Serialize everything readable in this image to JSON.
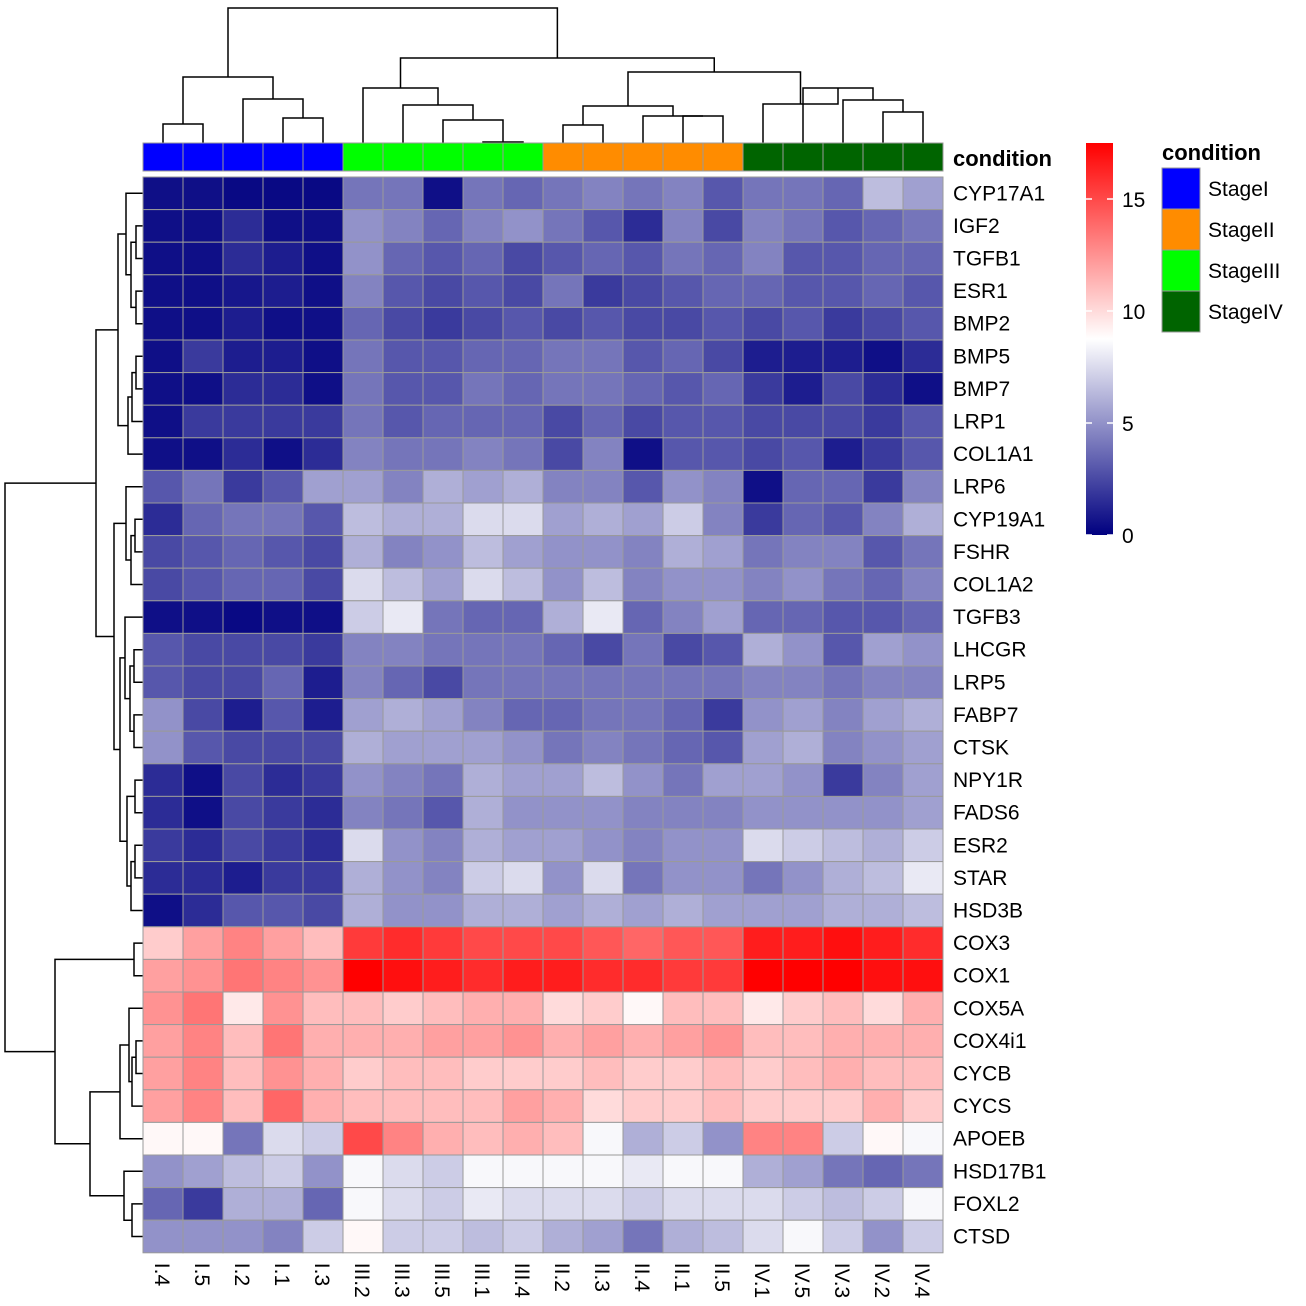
{
  "chart_data": {
    "type": "heatmap",
    "title": "",
    "columns": [
      "I.4",
      "I.5",
      "I.2",
      "I.1",
      "I.3",
      "III.2",
      "III.3",
      "III.5",
      "III.1",
      "III.4",
      "II.2",
      "II.3",
      "II.4",
      "II.1",
      "II.5",
      "IV.1",
      "IV.5",
      "IV.3",
      "IV.2",
      "IV.4"
    ],
    "column_conditions": [
      "StageI",
      "StageI",
      "StageI",
      "StageI",
      "StageI",
      "StageIII",
      "StageIII",
      "StageIII",
      "StageIII",
      "StageIII",
      "StageII",
      "StageII",
      "StageII",
      "StageII",
      "StageII",
      "StageIV",
      "StageIV",
      "StageIV",
      "StageIV",
      "StageIV"
    ],
    "rows": [
      "CYP17A1",
      "IGF2",
      "TGFB1",
      "ESR1",
      "BMP2",
      "BMP5",
      "BMP7",
      "LRP1",
      "COL1A1",
      "LRP6",
      "CYP19A1",
      "FSHR",
      "COL1A2",
      "TGFB3",
      "LHCGR",
      "LRP5",
      "FABP7",
      "CTSK",
      "NPY1R",
      "FADS6",
      "ESR2",
      "STAR",
      "HSD3B",
      "COX3",
      "COX1",
      "COX5A",
      "COX4i1",
      "CYCB",
      "CYCS",
      "APOEB",
      "HSD17B1",
      "FOXL2",
      "CTSD"
    ],
    "values": [
      [
        0.5,
        0.5,
        0.3,
        0.3,
        0.3,
        4.0,
        4.0,
        0.5,
        4.0,
        3.5,
        4.0,
        4.5,
        4.0,
        4.5,
        3.0,
        4.0,
        4.0,
        3.5,
        6.5,
        5.5
      ],
      [
        0.5,
        0.5,
        1.5,
        0.5,
        0.5,
        5.0,
        4.5,
        3.5,
        4.5,
        5.0,
        4.0,
        3.0,
        1.5,
        4.5,
        2.5,
        4.5,
        4.0,
        3.0,
        3.5,
        4.0
      ],
      [
        0.5,
        0.5,
        1.5,
        1.0,
        0.5,
        5.0,
        3.5,
        3.0,
        3.5,
        2.5,
        3.0,
        3.5,
        3.0,
        4.0,
        3.5,
        4.5,
        3.0,
        3.0,
        3.5,
        3.5
      ],
      [
        0.5,
        0.5,
        0.8,
        1.0,
        0.5,
        4.5,
        3.0,
        2.5,
        3.0,
        2.5,
        4.0,
        2.0,
        2.5,
        3.0,
        3.5,
        3.5,
        3.0,
        3.0,
        3.5,
        3.0
      ],
      [
        0.5,
        0.5,
        1.0,
        0.5,
        0.5,
        3.5,
        2.5,
        2.0,
        2.5,
        3.0,
        2.5,
        3.0,
        2.5,
        2.5,
        3.0,
        2.5,
        3.0,
        2.0,
        2.5,
        3.0
      ],
      [
        0.5,
        2.0,
        1.0,
        1.0,
        0.5,
        4.0,
        3.0,
        3.0,
        3.5,
        3.5,
        4.0,
        4.0,
        3.0,
        3.5,
        2.5,
        1.0,
        1.0,
        1.0,
        0.5,
        1.5
      ],
      [
        0.5,
        0.5,
        1.5,
        1.5,
        0.5,
        4.0,
        3.0,
        3.0,
        4.0,
        3.5,
        4.0,
        4.0,
        3.5,
        3.0,
        3.5,
        2.0,
        1.0,
        2.5,
        1.5,
        0.5
      ],
      [
        0.5,
        2.0,
        2.0,
        2.0,
        2.0,
        4.0,
        3.0,
        3.5,
        3.5,
        3.5,
        2.5,
        3.5,
        2.5,
        3.0,
        3.0,
        2.5,
        2.5,
        2.5,
        2.0,
        3.0
      ],
      [
        0.5,
        0.5,
        1.5,
        0.5,
        1.5,
        4.5,
        4.0,
        4.0,
        4.5,
        4.0,
        2.5,
        4.5,
        0.5,
        3.0,
        3.0,
        2.5,
        3.0,
        1.0,
        2.0,
        3.0
      ],
      [
        3.0,
        4.0,
        2.0,
        3.0,
        5.5,
        5.5,
        4.5,
        6.0,
        5.5,
        6.0,
        4.5,
        4.5,
        3.0,
        5.0,
        4.5,
        0.5,
        3.5,
        3.5,
        2.0,
        4.5
      ],
      [
        1.5,
        3.5,
        4.0,
        4.0,
        3.0,
        6.5,
        6.0,
        6.0,
        7.5,
        7.5,
        5.5,
        6.0,
        5.5,
        7.0,
        4.5,
        2.0,
        3.5,
        3.0,
        4.5,
        6.0
      ],
      [
        2.5,
        3.0,
        3.5,
        3.0,
        2.5,
        6.0,
        4.5,
        5.0,
        6.5,
        5.5,
        5.0,
        5.0,
        4.5,
        6.0,
        5.5,
        4.0,
        4.5,
        4.5,
        3.0,
        4.0
      ],
      [
        2.5,
        3.0,
        3.5,
        3.5,
        2.5,
        7.5,
        6.5,
        5.5,
        7.5,
        6.5,
        5.0,
        6.5,
        4.5,
        5.0,
        5.0,
        4.5,
        5.0,
        4.0,
        3.5,
        4.5
      ],
      [
        0.5,
        0.5,
        0.3,
        0.5,
        0.5,
        7.0,
        8.0,
        4.0,
        3.5,
        3.5,
        6.0,
        8.0,
        3.5,
        4.5,
        5.5,
        3.5,
        3.5,
        3.0,
        3.0,
        3.5
      ],
      [
        3.0,
        2.5,
        2.5,
        2.5,
        2.0,
        4.5,
        4.5,
        4.0,
        4.0,
        4.0,
        3.5,
        2.5,
        4.0,
        2.5,
        3.0,
        6.0,
        5.0,
        3.0,
        5.5,
        5.0
      ],
      [
        3.0,
        2.5,
        2.5,
        3.5,
        1.0,
        4.5,
        3.5,
        2.5,
        4.0,
        4.0,
        4.0,
        4.0,
        4.0,
        4.0,
        4.0,
        4.5,
        4.5,
        4.0,
        4.5,
        4.5
      ],
      [
        5.0,
        2.5,
        1.0,
        3.0,
        1.0,
        5.5,
        6.0,
        5.5,
        4.5,
        3.5,
        3.5,
        4.0,
        4.0,
        3.5,
        2.0,
        5.0,
        5.5,
        4.5,
        5.5,
        6.0
      ],
      [
        5.0,
        3.0,
        2.5,
        2.5,
        2.5,
        6.0,
        5.5,
        5.5,
        5.5,
        5.0,
        4.0,
        4.5,
        4.0,
        3.5,
        3.0,
        5.5,
        6.0,
        4.5,
        5.0,
        5.5
      ],
      [
        1.5,
        0.5,
        2.5,
        1.5,
        2.0,
        5.0,
        4.5,
        4.0,
        6.0,
        5.5,
        5.5,
        6.5,
        5.0,
        4.0,
        5.5,
        5.5,
        5.0,
        2.0,
        4.5,
        5.5
      ],
      [
        1.5,
        0.5,
        2.5,
        2.0,
        1.5,
        4.5,
        4.0,
        3.0,
        6.0,
        5.0,
        5.0,
        5.0,
        4.5,
        4.5,
        4.5,
        5.0,
        5.0,
        5.0,
        5.0,
        5.5
      ],
      [
        2.0,
        1.5,
        2.5,
        2.0,
        1.5,
        7.5,
        5.0,
        4.5,
        6.0,
        5.5,
        5.5,
        5.0,
        4.5,
        5.0,
        5.0,
        7.5,
        7.0,
        6.5,
        6.0,
        7.0
      ],
      [
        1.5,
        1.5,
        1.0,
        2.0,
        2.0,
        6.0,
        5.0,
        4.5,
        7.0,
        7.5,
        5.0,
        7.5,
        4.0,
        5.0,
        5.0,
        4.0,
        5.0,
        6.0,
        6.5,
        8.0
      ],
      [
        0.5,
        1.5,
        3.0,
        3.0,
        2.5,
        6.0,
        5.0,
        5.0,
        6.0,
        6.0,
        5.5,
        6.0,
        5.5,
        6.0,
        5.5,
        5.5,
        5.5,
        6.0,
        6.0,
        6.5
      ],
      [
        10.5,
        12.0,
        13.0,
        12.0,
        11.0,
        15.5,
        16.0,
        15.5,
        15.0,
        15.0,
        15.0,
        14.5,
        14.0,
        14.5,
        14.5,
        16.5,
        16.5,
        17.0,
        16.5,
        16.0
      ],
      [
        12.0,
        12.5,
        13.5,
        13.0,
        12.5,
        18.0,
        17.0,
        16.5,
        16.0,
        16.5,
        16.5,
        16.0,
        16.0,
        15.5,
        15.5,
        17.5,
        17.5,
        18.0,
        17.0,
        17.0
      ],
      [
        12.5,
        13.5,
        9.5,
        12.5,
        11.0,
        11.0,
        10.5,
        11.0,
        11.5,
        11.5,
        10.0,
        10.5,
        9.0,
        11.0,
        11.0,
        9.5,
        10.5,
        11.0,
        10.0,
        11.5
      ],
      [
        12.0,
        13.0,
        11.0,
        13.5,
        11.5,
        11.5,
        11.5,
        12.0,
        12.0,
        12.5,
        11.5,
        12.0,
        11.5,
        12.0,
        12.5,
        11.0,
        11.0,
        11.5,
        11.5,
        11.5
      ],
      [
        12.0,
        13.0,
        11.0,
        12.5,
        11.5,
        10.5,
        11.0,
        11.0,
        10.5,
        10.5,
        10.5,
        11.0,
        10.5,
        10.5,
        11.0,
        10.5,
        11.0,
        11.5,
        11.0,
        11.0
      ],
      [
        12.0,
        13.0,
        11.0,
        14.0,
        11.5,
        11.0,
        11.0,
        11.0,
        11.0,
        12.0,
        11.5,
        10.0,
        10.5,
        10.5,
        11.0,
        10.5,
        10.5,
        10.5,
        11.5,
        10.5
      ],
      [
        9.0,
        9.0,
        4.0,
        7.5,
        7.0,
        15.0,
        13.0,
        11.5,
        11.0,
        11.5,
        11.0,
        8.5,
        6.0,
        7.0,
        5.0,
        13.0,
        13.0,
        7.0,
        9.0,
        8.5
      ],
      [
        5.0,
        5.5,
        6.5,
        7.0,
        5.0,
        8.5,
        7.5,
        7.0,
        8.5,
        8.5,
        8.5,
        8.5,
        8.0,
        8.5,
        8.5,
        6.0,
        5.5,
        4.0,
        3.5,
        4.0
      ],
      [
        3.5,
        2.0,
        6.0,
        6.0,
        3.5,
        8.5,
        7.5,
        7.0,
        8.0,
        7.5,
        7.5,
        7.5,
        7.0,
        7.5,
        7.5,
        7.5,
        7.0,
        6.5,
        7.0,
        8.5
      ],
      [
        5.0,
        5.0,
        5.0,
        4.5,
        7.0,
        9.0,
        7.0,
        7.0,
        6.5,
        7.0,
        6.0,
        5.5,
        4.0,
        6.0,
        6.5,
        7.5,
        8.5,
        7.0,
        5.0,
        7.0
      ]
    ],
    "annotation_title": "condition",
    "colorbar": {
      "min": 0,
      "max": 17.5,
      "ticks": [
        "0",
        "5",
        "10",
        "15"
      ]
    },
    "legend": {
      "title": "condition",
      "items": [
        {
          "label": "StageI",
          "color": "#0000ff"
        },
        {
          "label": "StageII",
          "color": "#ff8c00"
        },
        {
          "label": "StageIII",
          "color": "#00ff00"
        },
        {
          "label": "StageIV",
          "color": "#006400"
        }
      ]
    },
    "colors": {
      "low": "#000080",
      "mid": "#ffffff",
      "high": "#ff0000"
    }
  }
}
